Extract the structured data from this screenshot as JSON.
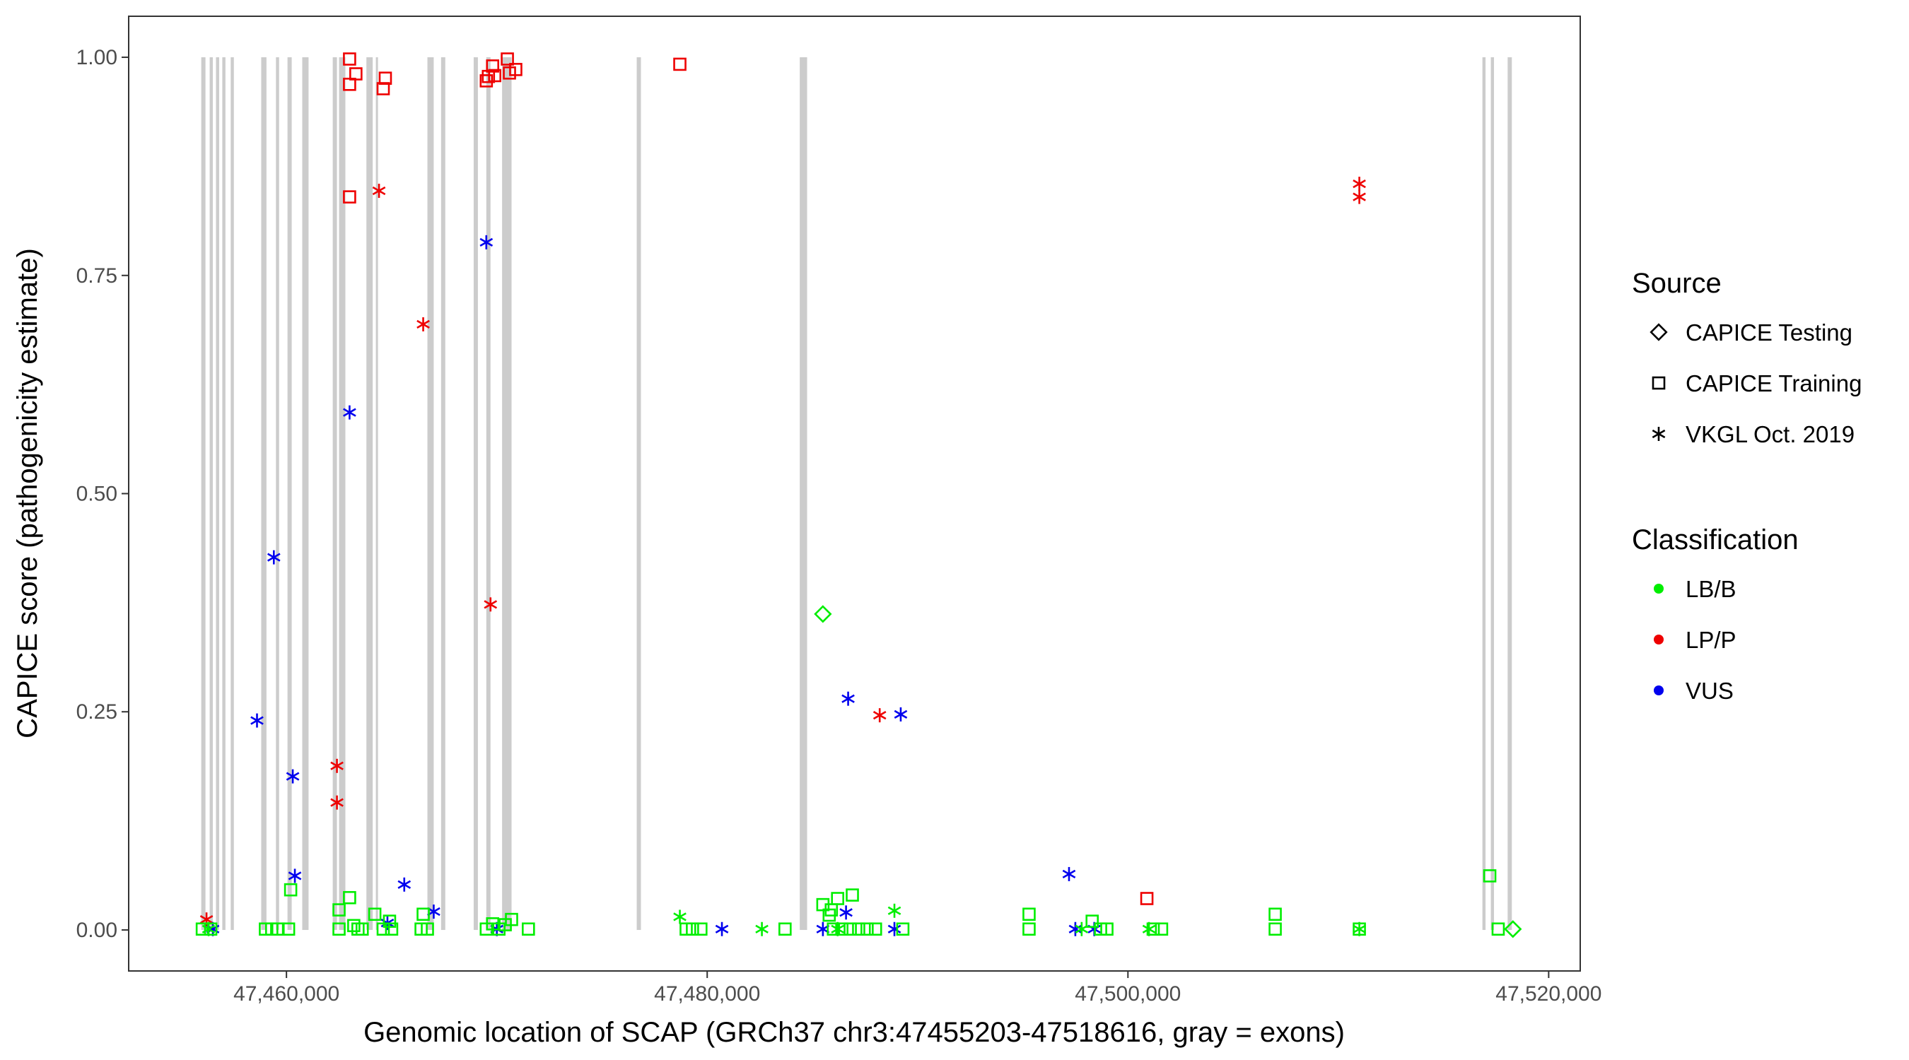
{
  "chart_data": {
    "type": "scatter",
    "title": "",
    "xlabel": "Genomic location of SCAP (GRCh37 chr3:47455203-47518616, gray = exons)",
    "ylabel": "CAPICE score (pathogenicity estimate)",
    "xlim": [
      47452500,
      47521500
    ],
    "ylim": [
      -0.047,
      1.047
    ],
    "x_ticks": [
      47460000,
      47480000,
      47500000,
      47520000
    ],
    "x_tick_labels": [
      "47,460,000",
      "47,480,000",
      "47,500,000",
      "47,520,000"
    ],
    "y_ticks": [
      0,
      0.25,
      0.5,
      0.75,
      1.0
    ],
    "y_tick_labels": [
      "0.00",
      "0.25",
      "0.50",
      "0.75",
      "1.00"
    ],
    "grid": false,
    "exons": [
      [
        47455950,
        47456150
      ],
      [
        47456350,
        47456500
      ],
      [
        47456650,
        47456800
      ],
      [
        47456950,
        47457100
      ],
      [
        47457350,
        47457500
      ],
      [
        47458800,
        47459050
      ],
      [
        47459500,
        47459650
      ],
      [
        47460050,
        47460250
      ],
      [
        47460750,
        47461050
      ],
      [
        47462200,
        47462400
      ],
      [
        47462500,
        47462800
      ],
      [
        47463800,
        47464100
      ],
      [
        47464250,
        47464350
      ],
      [
        47466700,
        47467000
      ],
      [
        47467350,
        47467550
      ],
      [
        47468900,
        47469100
      ],
      [
        47469500,
        47469700
      ],
      [
        47470250,
        47470700
      ],
      [
        47476650,
        47476850
      ],
      [
        47484400,
        47484750
      ],
      [
        47516850,
        47517000
      ],
      [
        47517250,
        47517400
      ],
      [
        47518050,
        47518250
      ]
    ],
    "legend": {
      "placement": "right",
      "source_title": "Source",
      "source_entries": [
        {
          "label": "CAPICE Testing",
          "shape": "diamond"
        },
        {
          "label": "CAPICE Training",
          "shape": "square"
        },
        {
          "label": "VKGL Oct. 2019",
          "shape": "asterisk"
        }
      ],
      "class_title": "Classification",
      "class_entries": [
        {
          "label": "LB/B",
          "color": "#00ee00"
        },
        {
          "label": "LP/P",
          "color": "#ee0000"
        },
        {
          "label": "VUS",
          "color": "#0000ee"
        }
      ]
    },
    "colors": {
      "LB/B": "#00ee00",
      "LP/P": "#ee0000",
      "VUS": "#0000ee",
      "exon": "#cccccc"
    },
    "series": [
      {
        "source": "CAPICE Training",
        "classification": "LP/P",
        "points": [
          [
            47463000,
            0.998
          ],
          [
            47463300,
            0.981
          ],
          [
            47463000,
            0.969
          ],
          [
            47464700,
            0.976
          ],
          [
            47464600,
            0.964
          ],
          [
            47463000,
            0.84
          ],
          [
            47469800,
            0.99
          ],
          [
            47469600,
            0.978
          ],
          [
            47469500,
            0.973
          ],
          [
            47469900,
            0.979
          ],
          [
            47470500,
            0.998
          ],
          [
            47470600,
            0.982
          ],
          [
            47470900,
            0.986
          ],
          [
            47478700,
            0.992
          ],
          [
            47500900,
            0.036
          ]
        ]
      },
      {
        "source": "VKGL Oct. 2019",
        "classification": "LP/P",
        "points": [
          [
            47456200,
            0.012
          ],
          [
            47462400,
            0.188
          ],
          [
            47462400,
            0.146
          ],
          [
            47464400,
            0.847
          ],
          [
            47466500,
            0.694
          ],
          [
            47469700,
            0.373
          ],
          [
            47488200,
            0.246
          ],
          [
            47511000,
            0.855
          ],
          [
            47511000,
            0.84
          ]
        ]
      },
      {
        "source": "VKGL Oct. 2019",
        "classification": "VUS",
        "points": [
          [
            47458600,
            0.24
          ],
          [
            47459400,
            0.427
          ],
          [
            47460300,
            0.176
          ],
          [
            47460400,
            0.062
          ],
          [
            47463000,
            0.593
          ],
          [
            47465600,
            0.052
          ],
          [
            47464800,
            0.008
          ],
          [
            47467000,
            0.021
          ],
          [
            47469500,
            0.788
          ],
          [
            47470000,
            0.001
          ],
          [
            47456500,
            0.001
          ],
          [
            47480700,
            0.001
          ],
          [
            47486700,
            0.265
          ],
          [
            47486600,
            0.02
          ],
          [
            47485500,
            0.001
          ],
          [
            47489200,
            0.247
          ],
          [
            47488900,
            0.001
          ],
          [
            47497200,
            0.064
          ],
          [
            47497500,
            0.001
          ],
          [
            47498400,
            0.001
          ]
        ]
      },
      {
        "source": "VKGL Oct. 2019",
        "classification": "LB/B",
        "points": [
          [
            47456300,
            0.001
          ],
          [
            47478700,
            0.015
          ],
          [
            47482600,
            0.001
          ],
          [
            47488900,
            0.022
          ],
          [
            47501000,
            0.001
          ],
          [
            47511000,
            0.001
          ],
          [
            47497800,
            0.001
          ],
          [
            47486200,
            0.001
          ]
        ]
      },
      {
        "source": "CAPICE Testing",
        "classification": "LB/B",
        "points": [
          [
            47485500,
            0.362
          ],
          [
            47518300,
            0.001
          ]
        ]
      },
      {
        "source": "CAPICE Training",
        "classification": "LB/B",
        "points": [
          [
            47456000,
            0.001
          ],
          [
            47456400,
            0.001
          ],
          [
            47459000,
            0.001
          ],
          [
            47459300,
            0.001
          ],
          [
            47459600,
            0.001
          ],
          [
            47460100,
            0.001
          ],
          [
            47460200,
            0.046
          ],
          [
            47462500,
            0.023
          ],
          [
            47462500,
            0.001
          ],
          [
            47463000,
            0.037
          ],
          [
            47463200,
            0.005
          ],
          [
            47463400,
            0.001
          ],
          [
            47463600,
            0.001
          ],
          [
            47464200,
            0.018
          ],
          [
            47464600,
            0.001
          ],
          [
            47464900,
            0.01
          ],
          [
            47465000,
            0.001
          ],
          [
            47466500,
            0.018
          ],
          [
            47466400,
            0.001
          ],
          [
            47466700,
            0.001
          ],
          [
            47469500,
            0.001
          ],
          [
            47469800,
            0.007
          ],
          [
            47470100,
            0.001
          ],
          [
            47470400,
            0.006
          ],
          [
            47470700,
            0.012
          ],
          [
            47471500,
            0.001
          ],
          [
            47479000,
            0.001
          ],
          [
            47479300,
            0.001
          ],
          [
            47479700,
            0.001
          ],
          [
            47483700,
            0.001
          ],
          [
            47485500,
            0.029
          ],
          [
            47485800,
            0.017
          ],
          [
            47485900,
            0.023
          ],
          [
            47486200,
            0.036
          ],
          [
            47486900,
            0.04
          ],
          [
            47486000,
            0.001
          ],
          [
            47486400,
            0.001
          ],
          [
            47486800,
            0.001
          ],
          [
            47487200,
            0.001
          ],
          [
            47487600,
            0.001
          ],
          [
            47488000,
            0.001
          ],
          [
            47489300,
            0.001
          ],
          [
            47495300,
            0.018
          ],
          [
            47495300,
            0.001
          ],
          [
            47498300,
            0.01
          ],
          [
            47498700,
            0.001
          ],
          [
            47499000,
            0.001
          ],
          [
            47501200,
            0.001
          ],
          [
            47501600,
            0.001
          ],
          [
            47507000,
            0.018
          ],
          [
            47507000,
            0.001
          ],
          [
            47511000,
            0.001
          ],
          [
            47517200,
            0.062
          ],
          [
            47517600,
            0.001
          ]
        ]
      }
    ]
  }
}
